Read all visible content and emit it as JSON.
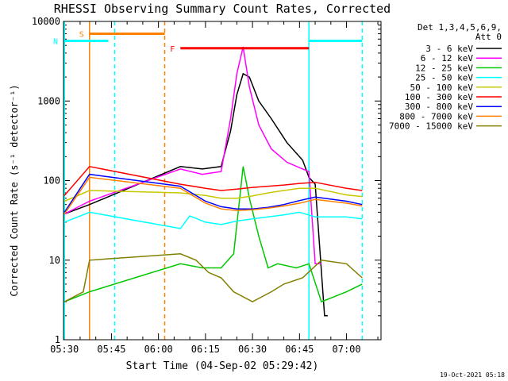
{
  "chart_data": {
    "type": "line",
    "title": "RHESSI Observing Summary Count Rates, Corrected",
    "xlabel": "Start Time (04-Sep-02 05:29:42)",
    "ylabel": "Corrected Count Rate (s⁻¹ detector⁻¹)",
    "y_scale": "log",
    "xlim": [
      "05:29:42",
      "07:11:00"
    ],
    "ylim": [
      1,
      10000
    ],
    "x_ticks": [
      "05:30",
      "05:45",
      "06:00",
      "06:15",
      "06:30",
      "06:45",
      "07:00"
    ],
    "y_ticks": [
      "1",
      "10",
      "100",
      "1000",
      "10000"
    ],
    "legend_header": [
      "Det 1,3,4,5,6,9,",
      "Att 0"
    ],
    "legend_position": "right",
    "footer": "19-Oct-2021 05:18",
    "series": [
      {
        "name": "3 - 6 keV",
        "color": "#000000",
        "x": [
          "05:30",
          "05:38",
          "06:07",
          "06:14",
          "06:20",
          "06:23",
          "06:25",
          "06:27",
          "06:29",
          "06:32",
          "06:36",
          "06:41",
          "06:46",
          "06:48",
          "06:50",
          "06:53",
          "06:54"
        ],
        "y": [
          38,
          50,
          150,
          140,
          150,
          420,
          1200,
          2200,
          2000,
          1000,
          600,
          300,
          180,
          110,
          90,
          2,
          2
        ]
      },
      {
        "name": "6 - 12 keV",
        "color": "#ff00ff",
        "x": [
          "05:30",
          "05:38",
          "06:07",
          "06:14",
          "06:20",
          "06:23",
          "06:25",
          "06:27",
          "06:29",
          "06:32",
          "06:36",
          "06:41",
          "06:46",
          "06:48",
          "06:50",
          "06:52"
        ],
        "y": [
          38,
          55,
          140,
          120,
          130,
          600,
          2200,
          4800,
          1500,
          500,
          250,
          170,
          140,
          130,
          9,
          9
        ]
      },
      {
        "name": "12 - 25 keV",
        "color": "#00c800",
        "x": [
          "05:30",
          "05:38",
          "06:07",
          "06:14",
          "06:20",
          "06:24",
          "06:27",
          "06:29",
          "06:32",
          "06:35",
          "06:38",
          "06:44",
          "06:48",
          "06:52",
          "07:00",
          "07:05"
        ],
        "y": [
          3,
          4,
          9,
          8,
          8,
          12,
          150,
          60,
          20,
          8,
          9,
          8,
          9,
          3,
          4,
          5
        ]
      },
      {
        "name": "25 - 50 keV",
        "color": "#00ffff",
        "x": [
          "05:30",
          "05:38",
          "06:07",
          "06:10",
          "06:15",
          "06:20",
          "06:25",
          "06:30",
          "06:35",
          "06:40",
          "06:45",
          "06:50",
          "07:00",
          "07:05"
        ],
        "y": [
          30,
          40,
          25,
          36,
          30,
          28,
          31,
          33,
          35,
          37,
          40,
          35,
          35,
          33
        ]
      },
      {
        "name": "50 - 100 keV",
        "color": "#c8c800",
        "x": [
          "05:30",
          "05:38",
          "06:07",
          "06:15",
          "06:20",
          "06:25",
          "06:30",
          "06:35",
          "06:40",
          "06:45",
          "06:50",
          "07:00",
          "07:05"
        ],
        "y": [
          55,
          75,
          70,
          65,
          60,
          60,
          64,
          70,
          75,
          80,
          80,
          66,
          63
        ]
      },
      {
        "name": "100 - 300 keV",
        "color": "#ff0000",
        "x": [
          "05:30",
          "05:38",
          "06:07",
          "06:15",
          "06:20",
          "06:25",
          "06:30",
          "06:35",
          "06:40",
          "06:45",
          "06:50",
          "07:00",
          "07:05"
        ],
        "y": [
          65,
          150,
          90,
          80,
          75,
          78,
          82,
          85,
          88,
          92,
          95,
          80,
          75
        ]
      },
      {
        "name": "300 - 800 keV",
        "color": "#0000ff",
        "x": [
          "05:30",
          "05:38",
          "06:07",
          "06:15",
          "06:20",
          "06:25",
          "06:30",
          "06:35",
          "06:40",
          "06:45",
          "06:50",
          "07:00",
          "07:05"
        ],
        "y": [
          40,
          120,
          85,
          55,
          47,
          44,
          44,
          46,
          50,
          56,
          62,
          55,
          50
        ]
      },
      {
        "name": "800 - 7000 keV",
        "color": "#ff8000",
        "x": [
          "05:30",
          "05:38",
          "06:07",
          "06:15",
          "06:20",
          "06:25",
          "06:30",
          "06:35",
          "06:40",
          "06:45",
          "06:50",
          "07:00",
          "07:05"
        ],
        "y": [
          38,
          110,
          80,
          52,
          44,
          42,
          43,
          45,
          48,
          52,
          58,
          52,
          48
        ]
      },
      {
        "name": "7000 - 15000 keV",
        "color": "#808000",
        "x": [
          "05:30",
          "05:36",
          "05:38",
          "06:07",
          "06:12",
          "06:16",
          "06:20",
          "06:24",
          "06:30",
          "06:36",
          "06:40",
          "06:46",
          "06:52",
          "07:00",
          "07:05"
        ],
        "y": [
          3,
          4,
          10,
          12,
          10,
          7,
          6,
          4,
          3,
          4,
          5,
          6,
          10,
          9,
          6
        ]
      }
    ],
    "flag_bars": [
      {
        "label": "S",
        "color": "#ff8000",
        "x_start": "05:38",
        "x_end": "06:02",
        "y": 7000
      },
      {
        "label": "N",
        "color": "#00ffff",
        "x_start": "05:29:42",
        "x_end": "05:44",
        "y": 5700
      },
      {
        "label": "",
        "color": "#00ffff",
        "x_start": "06:48",
        "x_end": "07:05",
        "y": 5700
      },
      {
        "label": "F",
        "color": "#ff0000",
        "x_start": "06:07",
        "x_end": "06:48",
        "y": 4600
      }
    ],
    "vertical_markers": [
      {
        "x": "05:30",
        "color": "#00ffff",
        "style": "solid"
      },
      {
        "x": "05:38",
        "color": "#ff8000",
        "style": "solid"
      },
      {
        "x": "05:46",
        "color": "#00ffff",
        "style": "dashed"
      },
      {
        "x": "06:02",
        "color": "#ff8000",
        "style": "dashed"
      },
      {
        "x": "06:48",
        "color": "#00ffff",
        "style": "solid"
      },
      {
        "x": "07:05",
        "color": "#00ffff",
        "style": "dashed"
      }
    ]
  }
}
